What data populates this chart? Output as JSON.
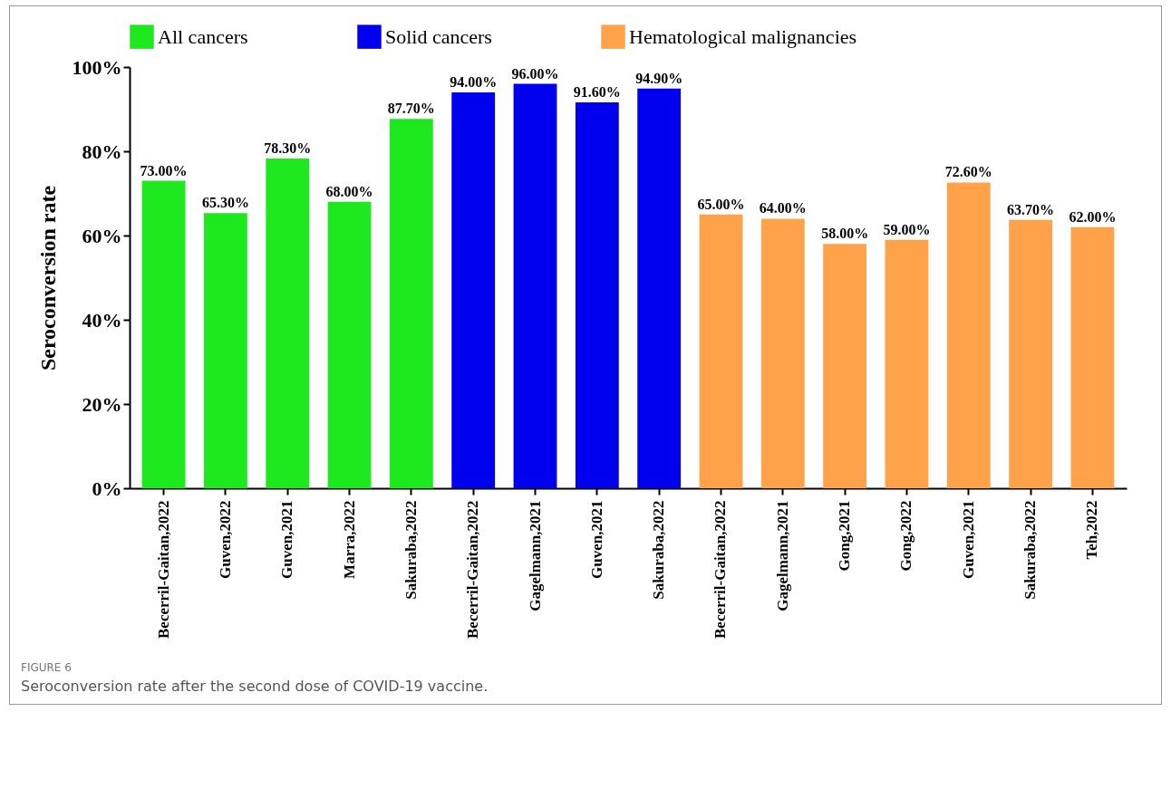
{
  "chart_data": {
    "type": "bar",
    "ylabel": "Seroconversion rate",
    "categories": [
      "Becerril-Gaitan,2022",
      "Guven,2022",
      "Guven,2021",
      "Marra,2022",
      "Sakuraba,2022",
      "Becerril-Gaitan,2022",
      "Gagelmann,2021",
      "Guven,2021",
      "Sakuraba,2022",
      "Becerril-Gaitan,2022",
      "Gagelmann,2021",
      "Gong,2021",
      "Gong,2022",
      "Guven,2021",
      "Sakuraba,2022",
      "Teh,2022"
    ],
    "series": [
      {
        "name": "All cancers",
        "color": "#1ee81e",
        "values": [
          73,
          65.3,
          78.3,
          68,
          87.7,
          null,
          null,
          null,
          null,
          null,
          null,
          null,
          null,
          null,
          null,
          null
        ],
        "value_labels": [
          "73.00%",
          "65.30%",
          "78.30%",
          "68.00%",
          "87.70%",
          null,
          null,
          null,
          null,
          null,
          null,
          null,
          null,
          null,
          null,
          null
        ]
      },
      {
        "name": "Solid cancers",
        "color": "#0000ee",
        "values": [
          null,
          null,
          null,
          null,
          null,
          94,
          96,
          91.6,
          94.9,
          null,
          null,
          null,
          null,
          null,
          null,
          null
        ],
        "value_labels": [
          null,
          null,
          null,
          null,
          null,
          "94.00%",
          "96.00%",
          "91.60%",
          "94.90%",
          null,
          null,
          null,
          null,
          null,
          null,
          null
        ]
      },
      {
        "name": "Hematological malignancies",
        "color": "#ffa24a",
        "values": [
          null,
          null,
          null,
          null,
          null,
          null,
          null,
          null,
          null,
          65,
          64,
          58,
          59,
          72.6,
          63.7,
          62
        ],
        "value_labels": [
          null,
          null,
          null,
          null,
          null,
          null,
          null,
          null,
          null,
          "65.00%",
          "64.00%",
          "58.00%",
          "59.00%",
          "72.60%",
          "63.70%",
          "62.00%"
        ]
      }
    ],
    "ylim": [
      0,
      100
    ],
    "yticks": [
      {
        "value": 0,
        "label": "0%"
      },
      {
        "value": 20,
        "label": "20%"
      },
      {
        "value": 40,
        "label": "40%"
      },
      {
        "value": 60,
        "label": "60%"
      },
      {
        "value": 80,
        "label": "80%"
      },
      {
        "value": 100,
        "label": "100%"
      }
    ],
    "legend": "top",
    "annotations": [
      "FIGURE 6",
      "Seroconversion rate after the second dose of COVID-19 vaccine."
    ]
  }
}
